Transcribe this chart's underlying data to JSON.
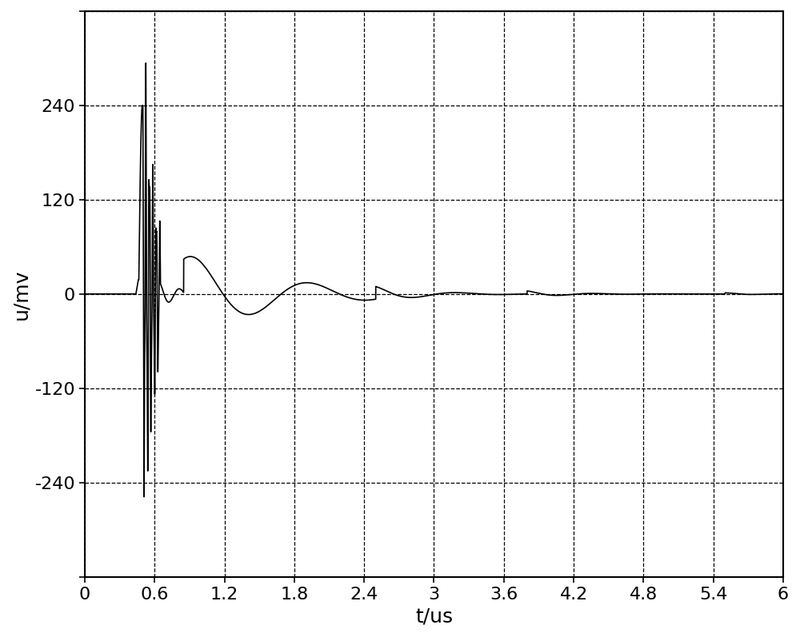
{
  "xlim": [
    0,
    6
  ],
  "ylim": [
    -360,
    360
  ],
  "xticks": [
    0,
    0.6,
    1.2,
    1.8,
    2.4,
    3.0,
    3.6,
    4.2,
    4.8,
    5.4,
    6.0
  ],
  "yticks": [
    -360,
    -240,
    -120,
    0,
    120,
    240,
    360
  ],
  "xlabel": "t/us",
  "ylabel": "u/mv",
  "line_color": "#000000",
  "background_color": "#ffffff",
  "grid_color": "#000000",
  "grid_linestyle": "--",
  "grid_linewidth": 0.9,
  "line_width": 1.2,
  "xlabel_fontsize": 18,
  "ylabel_fontsize": 18,
  "tick_fontsize": 16,
  "spine_linewidth": 1.5
}
